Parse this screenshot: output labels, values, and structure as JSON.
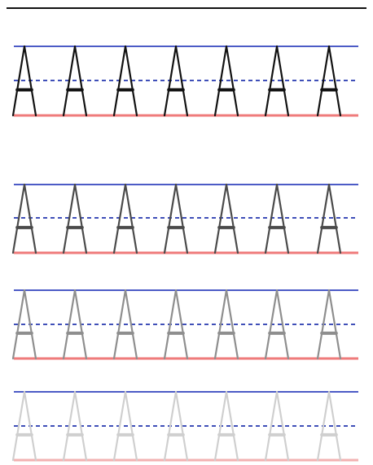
{
  "worksheet": {
    "letter": "A",
    "colors": {
      "top_line": "#4c5bc6",
      "mid_line": "#3f4fb8",
      "base_line": "#ef7b7b",
      "base_line_light": "#f2b1b1",
      "border": "#111111"
    },
    "rows": [
      {
        "letter_shade": "#111111",
        "count": 7
      },
      {
        "letter_shade": "#4a4a4a",
        "count": 7
      },
      {
        "letter_shade": "#8e8e8e",
        "count": 7
      },
      {
        "letter_shade": "#cfcfcf",
        "count": 7
      }
    ]
  }
}
